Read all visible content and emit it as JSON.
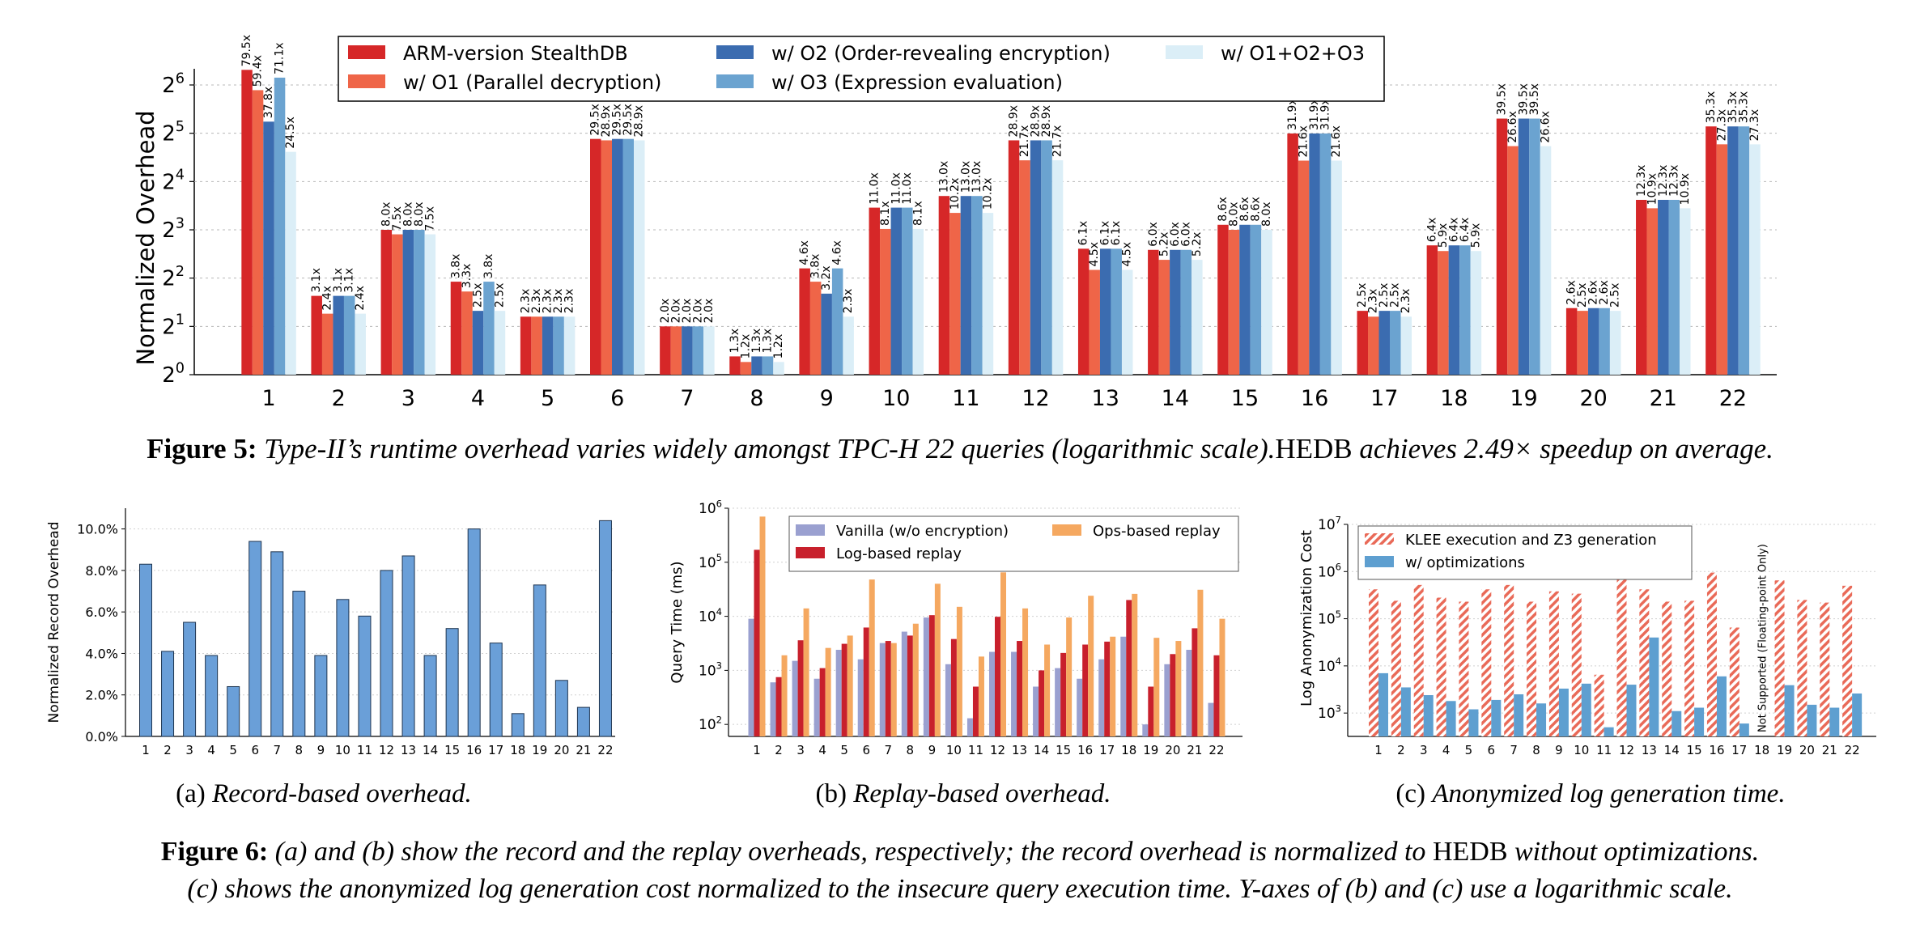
{
  "figure5": {
    "caption_label": "Figure 5:",
    "caption_text_1": "Type-II’s runtime overhead varies widely amongst TPC-H 22 queries (logarithmic scale).",
    "caption_hedb": "HEDB",
    "caption_text_2": " achieves 2.49× speedup on average."
  },
  "figure6": {
    "caption_label": "Figure 6:",
    "line1_a": "(a) and (b) show the record and the replay overheads, respectively; the record overhead is normalized to ",
    "line1_hedb": "HEDB",
    "line1_b": " without optimizations.",
    "line2": "(c) shows the anonymized log generation cost normalized to the insecure query execution time. Y-axes of (b) and (c) use a logarithmic scale.",
    "sub_a_prefix": "(a) ",
    "sub_a": "Record-based overhead.",
    "sub_b_prefix": "(b) ",
    "sub_b": "Replay-based overhead.",
    "sub_c_prefix": "(c) ",
    "sub_c": "Anonymized log generation time."
  },
  "chart_data": [
    {
      "id": "fig5",
      "type": "bar",
      "title": "",
      "xlabel": "",
      "ylabel": "Normalized Overhead",
      "y_scale": "log2",
      "ylim": [
        1,
        80
      ],
      "y_ticks": [
        "2⁰",
        "2¹",
        "2²",
        "2³",
        "2⁴",
        "2⁵",
        "2⁶"
      ],
      "grid": "horizontal dotted",
      "legend_position": "top",
      "categories": [
        "1",
        "2",
        "3",
        "4",
        "5",
        "6",
        "7",
        "8",
        "9",
        "10",
        "11",
        "12",
        "13",
        "14",
        "15",
        "16",
        "17",
        "18",
        "19",
        "20",
        "21",
        "22"
      ],
      "series": [
        {
          "name": "ARM-version StealthDB",
          "color": "#d62728",
          "values": [
            79.5,
            3.1,
            8.0,
            3.8,
            2.3,
            29.5,
            2.0,
            1.3,
            4.6,
            11.0,
            13.0,
            28.9,
            6.1,
            6.0,
            8.6,
            31.9,
            2.5,
            6.4,
            39.5,
            2.6,
            12.3,
            35.3
          ]
        },
        {
          "name": "w/ O1 (Parallel decryption)",
          "color": "#ef6548",
          "values": [
            59.4,
            2.4,
            7.5,
            3.3,
            2.3,
            28.9,
            2.0,
            1.2,
            3.8,
            8.1,
            10.2,
            21.7,
            4.5,
            5.2,
            8.0,
            21.6,
            2.3,
            5.9,
            26.6,
            2.5,
            10.9,
            27.3
          ]
        },
        {
          "name": "w/ O2 (Order-revealing encryption)",
          "color": "#3b6cb0",
          "values": [
            37.8,
            3.1,
            8.0,
            2.5,
            2.3,
            29.5,
            2.0,
            1.3,
            3.2,
            11.0,
            13.0,
            28.9,
            6.1,
            6.0,
            8.6,
            31.9,
            2.5,
            6.4,
            39.5,
            2.6,
            12.3,
            35.3
          ]
        },
        {
          "name": "w/ O3 (Expression evaluation)",
          "color": "#6ba3d0",
          "values": [
            71.1,
            3.1,
            8.0,
            3.8,
            2.3,
            29.5,
            2.0,
            1.3,
            4.6,
            11.0,
            13.0,
            28.9,
            6.1,
            6.0,
            8.6,
            31.9,
            2.5,
            6.4,
            39.5,
            2.6,
            12.3,
            35.3
          ]
        },
        {
          "name": "w/ O1+O2+O3",
          "color": "#dbeef7",
          "values": [
            24.5,
            2.4,
            7.5,
            2.5,
            2.3,
            28.9,
            2.0,
            1.2,
            2.3,
            8.1,
            10.2,
            21.7,
            4.5,
            5.2,
            8.0,
            21.6,
            2.3,
            5.9,
            26.6,
            2.5,
            10.9,
            27.3
          ]
        }
      ],
      "label_suffix": "x"
    },
    {
      "id": "fig6a",
      "type": "bar",
      "ylabel": "Normalized Record Overhead",
      "ylim": [
        0,
        11
      ],
      "y_ticks": [
        "0.0%",
        "2.0%",
        "4.0%",
        "6.0%",
        "8.0%",
        "10.0%"
      ],
      "categories": [
        "1",
        "2",
        "3",
        "4",
        "5",
        "6",
        "7",
        "8",
        "9",
        "10",
        "11",
        "12",
        "13",
        "14",
        "15",
        "16",
        "17",
        "18",
        "19",
        "20",
        "21",
        "22"
      ],
      "values": [
        8.3,
        4.1,
        5.5,
        3.9,
        2.4,
        9.4,
        8.9,
        7.0,
        3.9,
        6.6,
        5.8,
        8.0,
        8.7,
        3.9,
        5.2,
        10.0,
        4.5,
        1.1,
        7.3,
        2.7,
        1.4,
        10.4
      ],
      "color": "#6a9fd8"
    },
    {
      "id": "fig6b",
      "type": "bar",
      "ylabel": "Query Time (ms)",
      "y_scale": "log10",
      "ylim": [
        60,
        1000000
      ],
      "y_ticks": [
        "10²",
        "10³",
        "10⁴",
        "10⁵",
        "10⁶"
      ],
      "legend_position": "top",
      "categories": [
        "1",
        "2",
        "3",
        "4",
        "5",
        "6",
        "7",
        "8",
        "9",
        "10",
        "11",
        "12",
        "13",
        "14",
        "15",
        "16",
        "17",
        "18",
        "19",
        "20",
        "21",
        "22"
      ],
      "series": [
        {
          "name": "Vanilla (w/o encryption)",
          "color": "#9aa0d0",
          "values": [
            9000,
            600,
            1500,
            700,
            2400,
            1600,
            3200,
            5200,
            9500,
            1300,
            130,
            2200,
            2200,
            500,
            1100,
            700,
            1600,
            4200,
            100,
            1300,
            2400,
            250
          ]
        },
        {
          "name": "Log-based replay",
          "color": "#c8202c",
          "values": [
            170000,
            750,
            3600,
            1100,
            3100,
            6200,
            3500,
            4400,
            10500,
            3800,
            500,
            9800,
            3500,
            1000,
            2100,
            3000,
            3400,
            20000,
            500,
            2000,
            6000,
            1900
          ]
        },
        {
          "name": "Ops-based replay",
          "color": "#f5a860",
          "values": [
            700000,
            1900,
            14000,
            2600,
            4400,
            48000,
            3200,
            7300,
            40000,
            15000,
            1800,
            65000,
            14000,
            3000,
            9500,
            24000,
            4200,
            26000,
            4000,
            3500,
            31000,
            9000
          ]
        }
      ]
    },
    {
      "id": "fig6c",
      "type": "bar",
      "ylabel": "Log Anonymization Cost",
      "y_scale": "log10",
      "ylim": [
        320,
        10000000
      ],
      "y_ticks": [
        "10³",
        "10⁴",
        "10⁵",
        "10⁶",
        "10⁷"
      ],
      "legend_position": "top-left",
      "categories": [
        "1",
        "2",
        "3",
        "4",
        "5",
        "6",
        "7",
        "8",
        "9",
        "10",
        "11",
        "12",
        "13",
        "14",
        "15",
        "16",
        "17",
        "18",
        "19",
        "20",
        "21",
        "22"
      ],
      "annotation": "Not Supported (Floating-point Only)",
      "annotation_category": "18",
      "series": [
        {
          "name": "KLEE execution and Z3 generation",
          "color": "#e96a58",
          "pattern": "hatched",
          "values": [
            420000,
            240000,
            520000,
            280000,
            230000,
            420000,
            520000,
            230000,
            380000,
            340000,
            6500,
            850000,
            420000,
            230000,
            240000,
            950000,
            65000,
            null,
            650000,
            250000,
            220000,
            500000
          ]
        },
        {
          "name": "w/ optimizations",
          "color": "#5e9fd0",
          "values": [
            7000,
            3500,
            2400,
            1800,
            1200,
            1900,
            2500,
            1600,
            3300,
            4200,
            500,
            4000,
            40000,
            1100,
            1300,
            6000,
            600,
            null,
            3900,
            1500,
            1300,
            2600
          ]
        }
      ]
    }
  ]
}
